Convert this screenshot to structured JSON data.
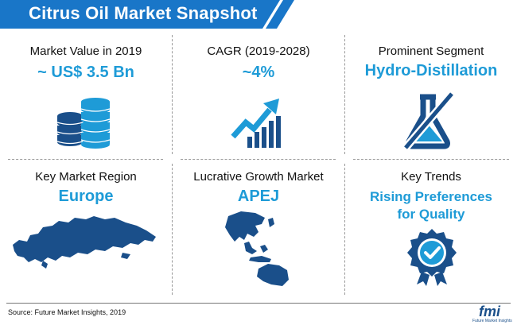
{
  "title": "Citrus Oil Market Snapshot",
  "colors": {
    "banner": "#1976c8",
    "accent": "#1e9bd7",
    "icon": "#1a4f8a"
  },
  "cells": [
    {
      "label": "Market Value in 2019",
      "value": "~ US$ 3.5 Bn",
      "icon": "coin-stack-icon"
    },
    {
      "label": "CAGR (2019-2028)",
      "value": "~4%",
      "icon": "growth-chart-icon"
    },
    {
      "label": "Prominent Segment",
      "value": "Hydro-Distillation",
      "icon": "flask-crossed-icon"
    },
    {
      "label": "Key Market Region",
      "value": "Europe",
      "icon": "europe-map-icon"
    },
    {
      "label": "Lucrative Growth Market",
      "value": "APEJ",
      "icon": "apej-map-icon"
    },
    {
      "label": "Key Trends",
      "value_line1": "Rising Preferences",
      "value_line2": "for Quality",
      "icon": "quality-badge-icon"
    }
  ],
  "footer": {
    "source": "Source: Future Market Insights, 2019"
  },
  "logo": {
    "text": "fmi",
    "subtitle": "Future Market Insights"
  }
}
